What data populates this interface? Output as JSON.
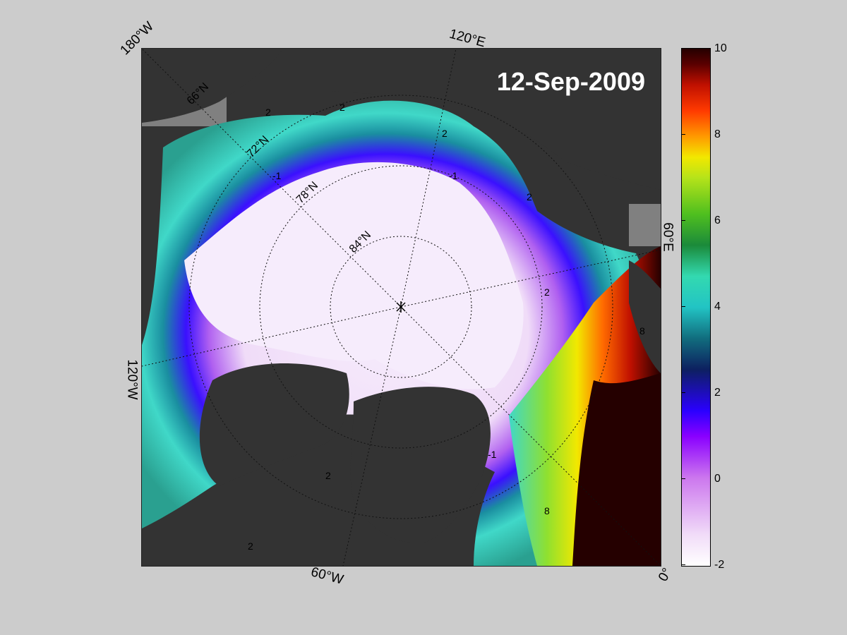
{
  "date": "12-Sep-2009",
  "longitude_labels": [
    "180°W",
    "120°E",
    "60°E",
    "0°",
    "60°W",
    "120°W"
  ],
  "latitude_labels": [
    "66°N",
    "72°N",
    "78°N",
    "84°N"
  ],
  "contour_labels": [
    "2",
    "-1",
    "8"
  ],
  "colorbar": {
    "ticks": [
      "10",
      "8",
      "6",
      "4",
      "2",
      "0",
      "-2"
    ],
    "min": -2,
    "max": 10
  },
  "colors": {
    "background": "#cccccc",
    "land": "#333333",
    "ice_cold": "#f3e4fb",
    "warm": "#250000"
  }
}
